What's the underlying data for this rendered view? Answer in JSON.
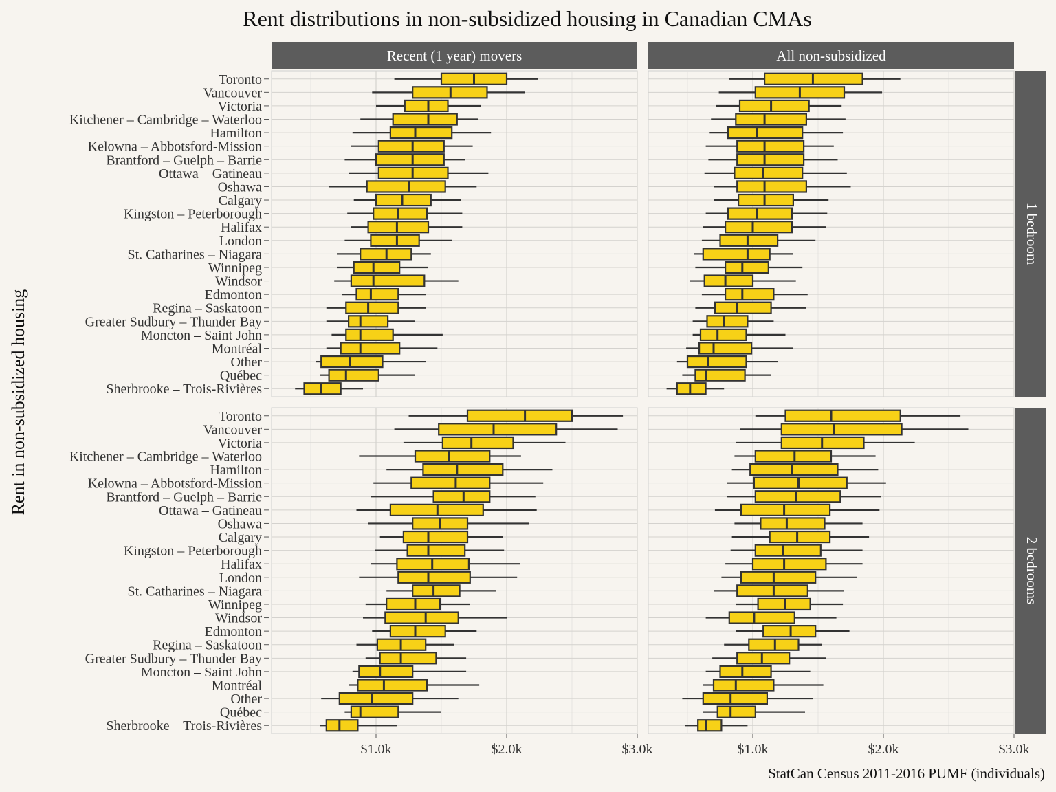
{
  "chart_data": {
    "type": "boxplot",
    "title": "Rent distributions in non-subsidized housing in Canadian CMAs",
    "ylabel": "Rent in non-subsidized housing",
    "caption": "StatCan Census 2011-2016 PUMF (individuals)",
    "xlim": [
      200,
      3000
    ],
    "x_ticks": [
      1000,
      2000,
      3000
    ],
    "x_tick_labels": [
      "$1.0k",
      "$2.0k",
      "$3.0k"
    ],
    "columns": [
      "Recent (1 year) movers",
      "All non-subsidized"
    ],
    "rows": [
      "1 bedroom",
      "2 bedrooms"
    ],
    "categories": [
      "Toronto",
      "Vancouver",
      "Victoria",
      "Kitchener – Cambridge – Waterloo",
      "Hamilton",
      "Kelowna – Abbotsford-Mission",
      "Brantford – Guelph – Barrie",
      "Ottawa – Gatineau",
      "Oshawa",
      "Calgary",
      "Kingston – Peterborough",
      "Halifax",
      "London",
      "St. Catharines – Niagara",
      "Winnipeg",
      "Windsor",
      "Edmonton",
      "Regina – Saskatoon",
      "Greater Sudbury – Thunder Bay",
      "Moncton – Saint John",
      "Montréal",
      "Other",
      "Québec",
      "Sherbrooke – Trois-Rivières"
    ],
    "fill_color": "#f7d117",
    "stroke_color": "#333333",
    "strip_color": "#5c5c5c",
    "panels": [
      {
        "row": "1 bedroom",
        "column": "Recent (1 year) movers",
        "boxes": [
          [
            1140,
            1500,
            1750,
            2000,
            2240
          ],
          [
            970,
            1280,
            1570,
            1850,
            2140
          ],
          [
            1000,
            1220,
            1400,
            1550,
            1800
          ],
          [
            880,
            1130,
            1400,
            1620,
            1780
          ],
          [
            820,
            1110,
            1300,
            1580,
            1880
          ],
          [
            810,
            1020,
            1280,
            1520,
            1740
          ],
          [
            760,
            1000,
            1280,
            1520,
            1680
          ],
          [
            790,
            1020,
            1280,
            1550,
            1860
          ],
          [
            640,
            930,
            1250,
            1530,
            1770
          ],
          [
            830,
            1000,
            1200,
            1420,
            1650
          ],
          [
            780,
            980,
            1170,
            1390,
            1660
          ],
          [
            810,
            940,
            1160,
            1400,
            1660
          ],
          [
            760,
            960,
            1160,
            1330,
            1580
          ],
          [
            700,
            880,
            1080,
            1270,
            1420
          ],
          [
            700,
            830,
            980,
            1180,
            1400
          ],
          [
            680,
            810,
            980,
            1370,
            1630
          ],
          [
            740,
            850,
            960,
            1170,
            1380
          ],
          [
            620,
            770,
            940,
            1170,
            1380
          ],
          [
            620,
            790,
            880,
            1090,
            1300
          ],
          [
            660,
            770,
            880,
            1130,
            1510
          ],
          [
            620,
            730,
            880,
            1180,
            1470
          ],
          [
            540,
            580,
            800,
            1050,
            1380
          ],
          [
            570,
            640,
            770,
            1020,
            1300
          ],
          [
            380,
            450,
            580,
            730,
            900
          ]
        ]
      },
      {
        "row": "1 bedroom",
        "column": "All non-subsidized",
        "boxes": [
          [
            820,
            1090,
            1460,
            1840,
            2130
          ],
          [
            740,
            1020,
            1360,
            1700,
            1990
          ],
          [
            720,
            900,
            1140,
            1430,
            1680
          ],
          [
            680,
            870,
            1090,
            1410,
            1710
          ],
          [
            670,
            810,
            1030,
            1380,
            1690
          ],
          [
            640,
            880,
            1090,
            1390,
            1620
          ],
          [
            660,
            880,
            1090,
            1390,
            1650
          ],
          [
            630,
            860,
            1080,
            1380,
            1720
          ],
          [
            700,
            880,
            1090,
            1410,
            1750
          ],
          [
            700,
            890,
            1090,
            1310,
            1580
          ],
          [
            640,
            810,
            1030,
            1300,
            1570
          ],
          [
            620,
            790,
            1000,
            1300,
            1560
          ],
          [
            610,
            750,
            960,
            1190,
            1480
          ],
          [
            550,
            620,
            960,
            1130,
            1310
          ],
          [
            560,
            790,
            920,
            1120,
            1380
          ],
          [
            520,
            630,
            790,
            1000,
            1330
          ],
          [
            610,
            790,
            920,
            1160,
            1420
          ],
          [
            560,
            710,
            880,
            1140,
            1410
          ],
          [
            540,
            650,
            780,
            960,
            1160
          ],
          [
            540,
            600,
            730,
            950,
            1250
          ],
          [
            490,
            590,
            700,
            990,
            1310
          ],
          [
            420,
            500,
            660,
            950,
            1190
          ],
          [
            460,
            560,
            640,
            940,
            1140
          ],
          [
            340,
            420,
            520,
            640,
            780
          ]
        ]
      },
      {
        "row": "2 bedrooms",
        "column": "Recent (1 year) movers",
        "boxes": [
          [
            1250,
            1700,
            2140,
            2500,
            2890
          ],
          [
            1140,
            1480,
            1900,
            2380,
            2850
          ],
          [
            1210,
            1510,
            1730,
            2050,
            2450
          ],
          [
            870,
            1300,
            1560,
            1870,
            2110
          ],
          [
            1080,
            1360,
            1620,
            1970,
            2350
          ],
          [
            980,
            1270,
            1610,
            1870,
            2280
          ],
          [
            960,
            1440,
            1670,
            1870,
            2220
          ],
          [
            850,
            1110,
            1470,
            1820,
            2230
          ],
          [
            940,
            1280,
            1490,
            1700,
            2170
          ],
          [
            1030,
            1210,
            1400,
            1700,
            1970
          ],
          [
            990,
            1240,
            1400,
            1680,
            1980
          ],
          [
            960,
            1160,
            1430,
            1710,
            2100
          ],
          [
            870,
            1170,
            1400,
            1720,
            2080
          ],
          [
            1080,
            1280,
            1440,
            1640,
            1920
          ],
          [
            920,
            1080,
            1300,
            1490,
            1720
          ],
          [
            900,
            1070,
            1380,
            1630,
            2000
          ],
          [
            970,
            1110,
            1300,
            1530,
            1770
          ],
          [
            850,
            1010,
            1190,
            1380,
            1600
          ],
          [
            920,
            1030,
            1190,
            1460,
            1690
          ],
          [
            820,
            870,
            1030,
            1280,
            1690
          ],
          [
            790,
            860,
            1060,
            1390,
            1790
          ],
          [
            580,
            720,
            970,
            1280,
            1630
          ],
          [
            760,
            810,
            880,
            1170,
            1500
          ],
          [
            570,
            620,
            720,
            860,
            1160
          ]
        ]
      },
      {
        "row": "2 bedrooms",
        "column": "All non-subsidized",
        "boxes": [
          [
            1020,
            1250,
            1600,
            2130,
            2590
          ],
          [
            900,
            1220,
            1620,
            2140,
            2650
          ],
          [
            870,
            1220,
            1530,
            1850,
            2240
          ],
          [
            860,
            1020,
            1320,
            1600,
            1940
          ],
          [
            840,
            980,
            1300,
            1650,
            1960
          ],
          [
            800,
            1010,
            1350,
            1720,
            2020
          ],
          [
            800,
            1020,
            1330,
            1670,
            1980
          ],
          [
            710,
            910,
            1240,
            1590,
            1970
          ],
          [
            860,
            1060,
            1260,
            1550,
            1840
          ],
          [
            840,
            1130,
            1340,
            1590,
            1890
          ],
          [
            830,
            1020,
            1230,
            1520,
            1840
          ],
          [
            790,
            1000,
            1240,
            1560,
            1840
          ],
          [
            760,
            910,
            1160,
            1480,
            1800
          ],
          [
            700,
            880,
            1160,
            1420,
            1700
          ],
          [
            870,
            1040,
            1250,
            1440,
            1690
          ],
          [
            640,
            820,
            1010,
            1320,
            1640
          ],
          [
            870,
            1080,
            1290,
            1480,
            1740
          ],
          [
            780,
            970,
            1170,
            1350,
            1530
          ],
          [
            690,
            880,
            1070,
            1280,
            1560
          ],
          [
            640,
            750,
            920,
            1140,
            1440
          ],
          [
            620,
            700,
            870,
            1160,
            1540
          ],
          [
            460,
            620,
            830,
            1110,
            1460
          ],
          [
            620,
            730,
            830,
            1020,
            1400
          ],
          [
            480,
            580,
            640,
            760,
            960
          ]
        ]
      }
    ]
  }
}
